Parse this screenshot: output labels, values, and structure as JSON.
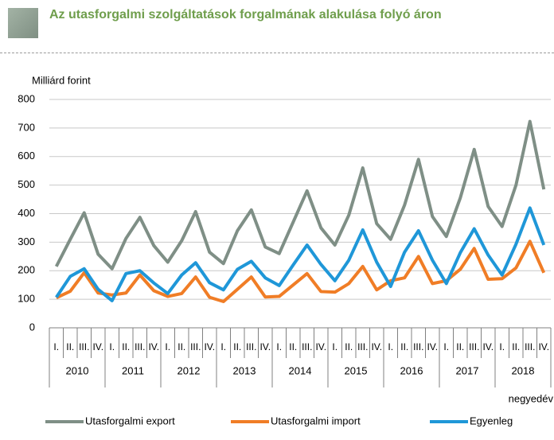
{
  "chart_data": {
    "type": "line",
    "title": "Az utasforgalmi szolgáltatások forgalmának alakulása folyó áron",
    "y_label": "Milliárd forint",
    "x_label": "negyedév",
    "categories": [
      "I.",
      "II.",
      "III.",
      "IV.",
      "I.",
      "II.",
      "III.",
      "IV.",
      "I.",
      "II.",
      "III.",
      "IV.",
      "I.",
      "II.",
      "III.",
      "IV.",
      "I.",
      "II.",
      "III.",
      "IV.",
      "I.",
      "II.",
      "III.",
      "IV.",
      "I.",
      "II.",
      "III.",
      "IV.",
      "I.",
      "II.",
      "III.",
      "IV.",
      "I.",
      "II.",
      "III.",
      "IV."
    ],
    "years": [
      "2010",
      "2011",
      "2012",
      "2013",
      "2014",
      "2015",
      "2016",
      "2017",
      "2018"
    ],
    "series": [
      {
        "name": "Utasforgalmi export",
        "color": "#7f8f86",
        "values": [
          215,
          310,
          403,
          258,
          207,
          313,
          387,
          288,
          230,
          305,
          407,
          265,
          225,
          340,
          413,
          283,
          260,
          370,
          480,
          350,
          290,
          395,
          560,
          365,
          310,
          430,
          590,
          390,
          320,
          455,
          625,
          425,
          355,
          500,
          723,
          485
        ]
      },
      {
        "name": "Utasforgalmi import",
        "color": "#f07d26",
        "values": [
          105,
          128,
          193,
          122,
          115,
          122,
          185,
          130,
          110,
          120,
          178,
          107,
          92,
          135,
          178,
          108,
          110,
          150,
          190,
          127,
          125,
          155,
          215,
          133,
          165,
          175,
          250,
          155,
          165,
          205,
          278,
          170,
          172,
          210,
          303,
          193
        ]
      },
      {
        "name": "Egyenleg",
        "color": "#1f97d8",
        "values": [
          107,
          180,
          207,
          135,
          95,
          190,
          200,
          157,
          120,
          185,
          228,
          158,
          133,
          205,
          233,
          175,
          148,
          220,
          290,
          222,
          165,
          237,
          343,
          230,
          145,
          265,
          340,
          237,
          155,
          263,
          347,
          255,
          185,
          293,
          420,
          290
        ]
      }
    ],
    "ylim": [
      0,
      800
    ],
    "yticks": [
      0,
      100,
      200,
      300,
      400,
      500,
      600,
      700,
      800
    ],
    "grid": true
  }
}
